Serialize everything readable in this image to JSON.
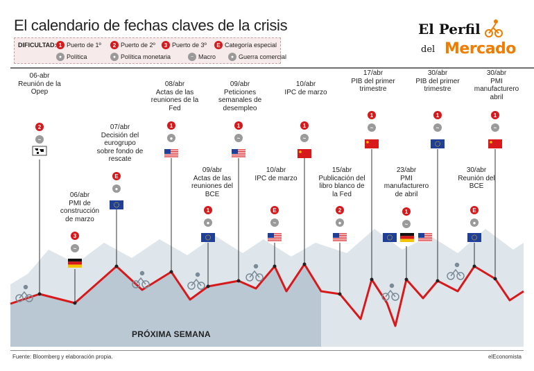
{
  "title": "El calendario de fechas claves de la crisis",
  "legend": {
    "label": "DIFICULTAD:",
    "items": [
      {
        "icon": "red-circle-1",
        "mark": "1",
        "text": "Puerto de 1º"
      },
      {
        "icon": "red-circle-2",
        "mark": "2",
        "text": "Puerto de 2º"
      },
      {
        "icon": "red-circle-3",
        "mark": "3",
        "text": "Puerto de 3º"
      },
      {
        "icon": "red-circle-E",
        "mark": "E",
        "text": "Categoría especial"
      },
      {
        "icon": "politics-icon",
        "mark": "●",
        "text": "Política"
      },
      {
        "icon": "monetary-icon",
        "mark": "●",
        "text": "Política monetaria"
      },
      {
        "icon": "macro-icon",
        "mark": "~",
        "text": "Macro"
      },
      {
        "icon": "trade-war-icon",
        "mark": "●",
        "text": "Guerra comercial"
      }
    ]
  },
  "logo": {
    "line1": "El Perfil",
    "line2": "del",
    "line3": "Mercado"
  },
  "events": [
    {
      "date": "06-abr",
      "text": [
        "Reunión de la",
        "Opep"
      ],
      "difficulty": "2",
      "flag": "world"
    },
    {
      "date": "06/abr",
      "text": [
        "PMI de",
        "construcción",
        "de marzo"
      ],
      "difficulty": "3",
      "flag": "de"
    },
    {
      "date": "07/abr",
      "text": [
        "Decisión del",
        "eurogrupo",
        "sobre fondo de",
        "rescate"
      ],
      "difficulty": "E",
      "flag": "eu"
    },
    {
      "date": "08/abr",
      "text": [
        "Actas de las",
        "reuniones de la",
        "Fed"
      ],
      "difficulty": "1",
      "flag": "us"
    },
    {
      "date": "09/abr",
      "text": [
        "Actas de las",
        "reuniones del",
        "BCE"
      ],
      "difficulty": "1",
      "flag": "eu"
    },
    {
      "date": "09/abr",
      "text": [
        "Peticiones",
        "semanales de",
        "desempleo"
      ],
      "difficulty": "1",
      "flag": "us"
    },
    {
      "date": "10/abr",
      "text": [
        "IPC de marzo"
      ],
      "difficulty": "E",
      "flag": "us"
    },
    {
      "date": "10/abr",
      "text": [
        "IPC de marzo"
      ],
      "difficulty": "1",
      "flag": "cn"
    },
    {
      "date": "15/abr",
      "text": [
        "Publicación del",
        "libro blanco de",
        "la Fed"
      ],
      "difficulty": "2",
      "flag": "us"
    },
    {
      "date": "17/abr",
      "text": [
        "PIB del primer",
        "trimestre"
      ],
      "difficulty": "1",
      "flag": "cn"
    },
    {
      "date": "23/abr",
      "text": [
        "PMI",
        "manufacturero",
        "de abril"
      ],
      "difficulty": "1",
      "flag": "eu-de-us"
    },
    {
      "date": "30/abr",
      "text": [
        "PIB del primer",
        "trimestre"
      ],
      "difficulty": "1",
      "flag": "eu"
    },
    {
      "date": "30/abr",
      "text": [
        "Reunión del",
        "BCE"
      ],
      "difficulty": "E",
      "flag": "eu"
    },
    {
      "date": "30/abr",
      "text": [
        "PMI",
        "manufacturero",
        "abril"
      ],
      "difficulty": "1",
      "flag": "cn"
    }
  ],
  "next_week_label": "PRÓXIMA SEMANA",
  "source": "Fuente: Bloomberg y elaboración propia.",
  "brand": "elEconomista",
  "colors": {
    "red": "#d7191c",
    "grey": "#9a9a9a",
    "shade": "#b9c8d3",
    "mountain": "#dfe6eb",
    "orange": "#f07d00"
  }
}
